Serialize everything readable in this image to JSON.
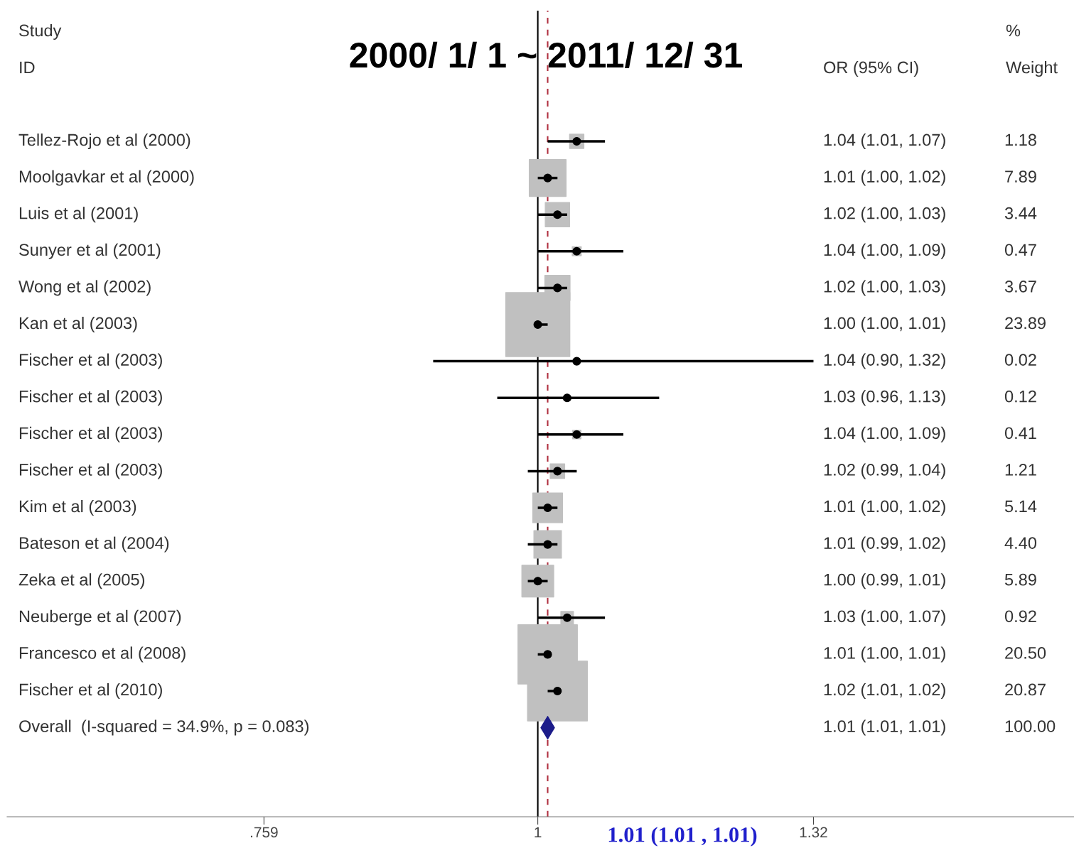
{
  "chart_data": {
    "type": "scatter",
    "orientation": "horizontal",
    "title": "2000/ 1/ 1 ~ 2011/ 12/ 31",
    "categories": [
      "Tellez-Rojo et al (2000)",
      "Moolgavkar et al (2000)",
      "Luis et al (2001)",
      "Sunyer et al (2001)",
      "Wong et al (2002)",
      "Kan et al (2003)",
      "Fischer et al (2003)",
      "Fischer et al (2003)",
      "Fischer et al (2003)",
      "Fischer et al (2003)",
      "Kim et al (2003)",
      "Bateson et al (2004)",
      "Zeka et al (2005)",
      "Neuberge et al (2007)",
      "Francesco et al (2008)",
      "Fischer et al (2010)",
      "Overall  (I-squared = 34.9%, p = 0.083)"
    ],
    "series": [
      {
        "marker": "circle",
        "color": "#000000",
        "values": [
          1.04,
          1.01,
          1.02,
          1.04,
          1.02,
          1.0,
          1.04,
          1.03,
          1.04,
          1.02,
          1.01,
          1.01,
          1.0,
          1.03,
          1.01,
          1.02,
          null
        ],
        "errors": [
          [
            1.01,
            1.07
          ],
          [
            1.0,
            1.02
          ],
          [
            1.0,
            1.03
          ],
          [
            1.0,
            1.09
          ],
          [
            1.0,
            1.03
          ],
          [
            1.0,
            1.01
          ],
          [
            0.9,
            1.32
          ],
          [
            0.96,
            1.13
          ],
          [
            1.0,
            1.09
          ],
          [
            0.99,
            1.04
          ],
          [
            1.0,
            1.02
          ],
          [
            0.99,
            1.02
          ],
          [
            0.99,
            1.01
          ],
          [
            1.0,
            1.07
          ],
          [
            1.0,
            1.01
          ],
          [
            1.01,
            1.02
          ],
          null
        ]
      },
      {
        "marker": "diamond",
        "color": "#1c1c8a",
        "values": [
          null,
          null,
          null,
          null,
          null,
          null,
          null,
          null,
          null,
          null,
          null,
          null,
          null,
          null,
          null,
          null,
          1.01
        ],
        "errors": [
          null,
          null,
          null,
          null,
          null,
          null,
          null,
          null,
          null,
          null,
          null,
          null,
          null,
          null,
          null,
          null,
          [
            1.01,
            1.01
          ]
        ]
      }
    ],
    "log": "x",
    "xlim": [
      0.586,
      1.716
    ],
    "xticks": [
      {
        "value": 0.759,
        "label": ".759"
      },
      1,
      1.32
    ],
    "ref_lines": [
      {
        "axis": "x",
        "value": 1,
        "label": null,
        "color": "#000000",
        "line_style": "solid"
      },
      {
        "axis": "x",
        "value": 1.01,
        "label": null,
        "color": "#b03040",
        "line_style": "dashed"
      }
    ],
    "annotations": [
      "Study",
      "ID",
      "OR (95% CI)",
      "%",
      "Weight",
      "1.01 (1.01 , 1.01)",
      "1.04 (1.01, 1.07)",
      "1.01 (1.00, 1.02)",
      "1.02 (1.00, 1.03)",
      "1.04 (1.00, 1.09)",
      "1.02 (1.00, 1.03)",
      "1.00 (1.00, 1.01)",
      "1.04 (0.90, 1.32)",
      "1.03 (0.96, 1.13)",
      "1.04 (1.00, 1.09)",
      "1.02 (0.99, 1.04)",
      "1.01 (1.00, 1.02)",
      "1.01 (0.99, 1.02)",
      "1.00 (0.99, 1.01)",
      "1.03 (1.00, 1.07)",
      "1.01 (1.00, 1.01)",
      "1.02 (1.01, 1.02)",
      "1.01 (1.01, 1.01)",
      "1.18",
      "7.89",
      "3.44",
      "0.47",
      "3.67",
      "23.89",
      "0.02",
      "0.12",
      "0.41",
      "1.21",
      "5.14",
      "4.40",
      "5.89",
      "0.92",
      "20.50",
      "20.87",
      "100.00"
    ],
    "grid": false,
    "legend": false
  }
}
